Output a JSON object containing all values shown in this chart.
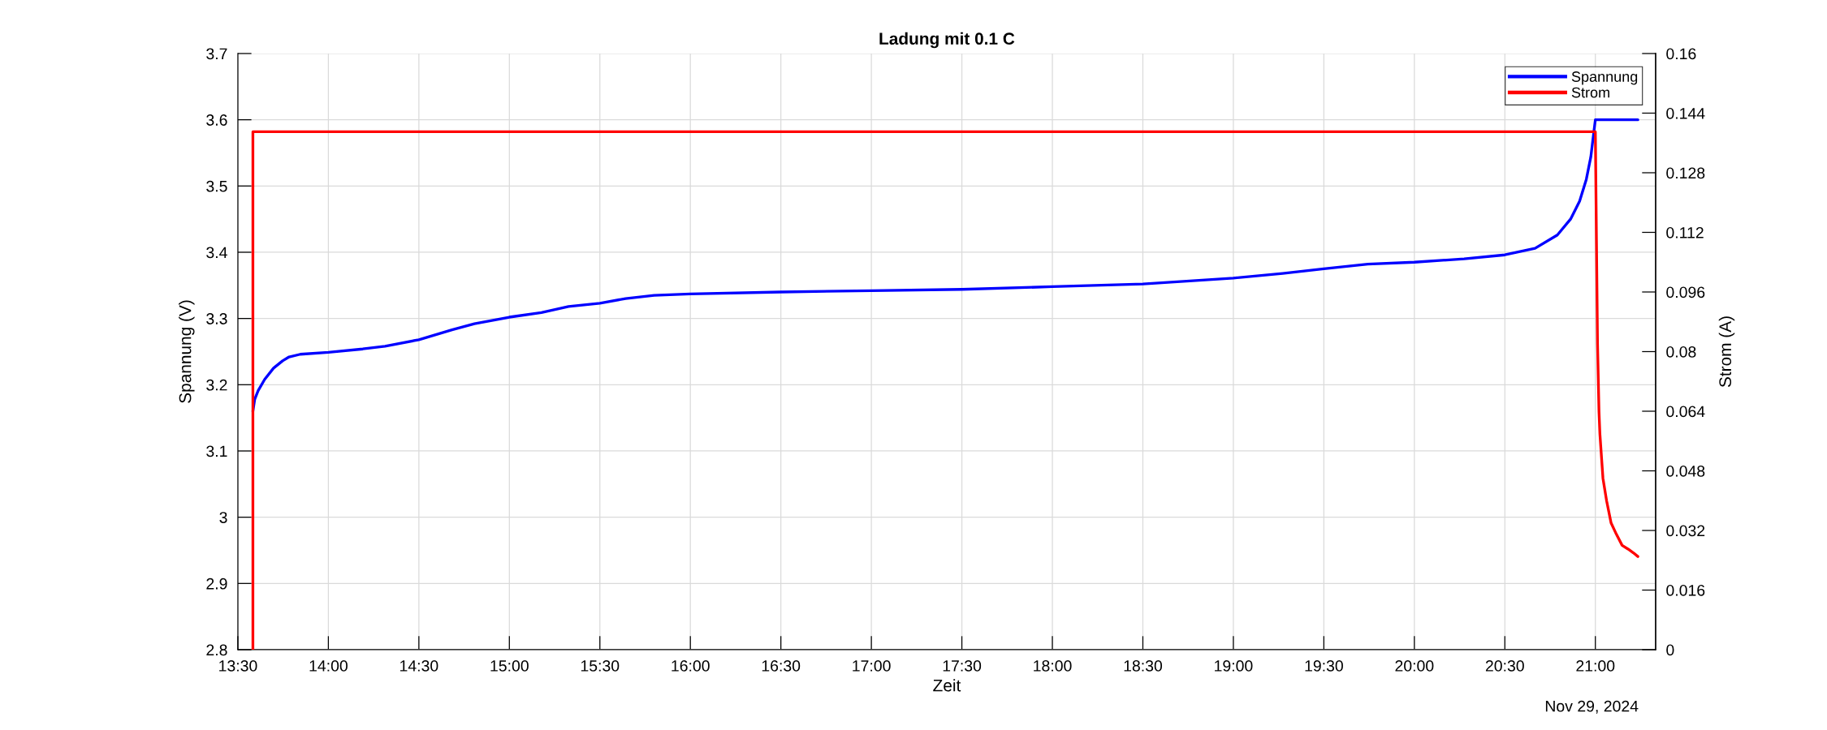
{
  "chart_data": {
    "type": "line",
    "title": "Ladung mit 0.1 C",
    "xlabel": "Zeit",
    "ylabel": "Spannung (V)",
    "y2label": "Strom (A)",
    "annotations": [
      "Nov 29, 2024"
    ],
    "xlim": [
      13.5,
      21.333
    ],
    "xticks": [
      {
        "value": 13.5,
        "label": "13:30"
      },
      {
        "value": 14,
        "label": "14:00"
      },
      {
        "value": 14.5,
        "label": "14:30"
      },
      {
        "value": 15,
        "label": "15:00"
      },
      {
        "value": 15.5,
        "label": "15:30"
      },
      {
        "value": 16,
        "label": "16:00"
      },
      {
        "value": 16.5,
        "label": "16:30"
      },
      {
        "value": 17,
        "label": "17:00"
      },
      {
        "value": 17.5,
        "label": "17:30"
      },
      {
        "value": 18,
        "label": "18:00"
      },
      {
        "value": 18.5,
        "label": "18:30"
      },
      {
        "value": 19,
        "label": "19:00"
      },
      {
        "value": 19.5,
        "label": "19:30"
      },
      {
        "value": 20,
        "label": "20:00"
      },
      {
        "value": 20.5,
        "label": "20:30"
      },
      {
        "value": 21,
        "label": "21:00"
      }
    ],
    "ylim": [
      2.8,
      3.7
    ],
    "yticks": [
      2.8,
      2.9,
      3,
      3.1,
      3.2,
      3.3,
      3.4,
      3.5,
      3.6,
      3.7
    ],
    "y2lim": [
      0,
      0.16
    ],
    "y2ticks": [
      0,
      0.016,
      0.032,
      0.048,
      0.064,
      0.08,
      0.096,
      0.112,
      0.128,
      0.144,
      0.16
    ],
    "grid": true,
    "legend": "top right",
    "line_style": "solid",
    "series": [
      {
        "name": "Spannung",
        "color": "#0000ff",
        "axis": "y",
        "x": [
          13.583,
          13.593,
          13.612,
          13.648,
          13.697,
          13.747,
          13.783,
          13.845,
          14.0,
          14.19,
          14.313,
          14.5,
          14.683,
          14.807,
          15.0,
          15.177,
          15.327,
          15.5,
          15.642,
          15.8,
          16.0,
          16.5,
          17.0,
          17.5,
          18.0,
          18.5,
          19.0,
          19.272,
          19.5,
          19.743,
          20.0,
          20.275,
          20.5,
          20.667,
          20.79,
          20.863,
          20.913,
          20.95,
          20.975,
          20.99,
          21.0,
          21.235
        ],
        "values": [
          3.16,
          3.178,
          3.191,
          3.208,
          3.225,
          3.236,
          3.242,
          3.246,
          3.249,
          3.254,
          3.258,
          3.268,
          3.283,
          3.292,
          3.302,
          3.309,
          3.318,
          3.323,
          3.33,
          3.335,
          3.337,
          3.34,
          3.342,
          3.344,
          3.348,
          3.352,
          3.361,
          3.368,
          3.375,
          3.382,
          3.385,
          3.39,
          3.396,
          3.406,
          3.426,
          3.45,
          3.477,
          3.51,
          3.544,
          3.578,
          3.6,
          3.6
        ]
      },
      {
        "name": "Strom",
        "color": "#ff0000",
        "axis": "y2",
        "x": [
          13.583,
          13.583,
          21.0,
          21.006,
          21.012,
          21.02,
          21.025,
          21.042,
          21.062,
          21.087,
          21.116,
          21.148,
          21.181,
          21.21,
          21.235
        ],
        "values": [
          0,
          0.139,
          0.139,
          0.11,
          0.082,
          0.064,
          0.058,
          0.046,
          0.04,
          0.034,
          0.031,
          0.028,
          0.027,
          0.026,
          0.025
        ]
      }
    ]
  }
}
